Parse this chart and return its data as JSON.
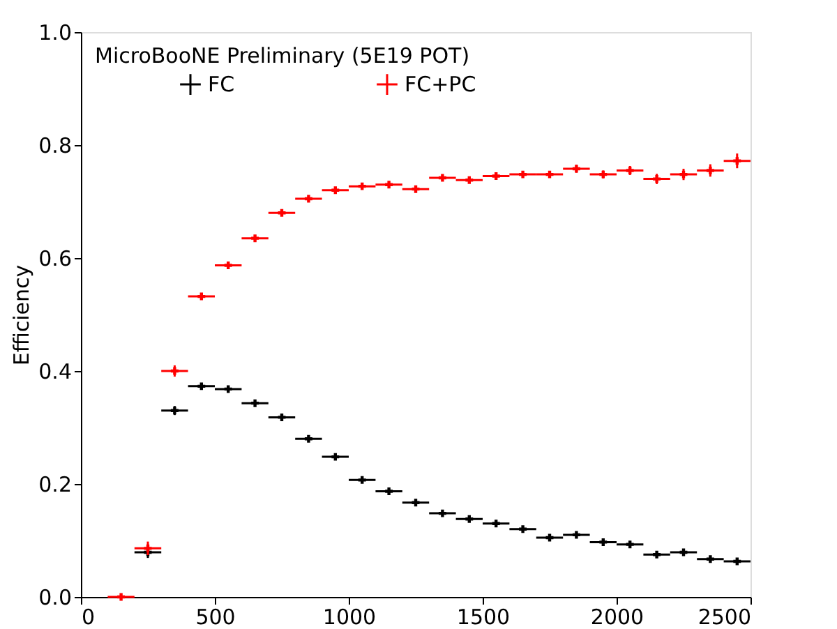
{
  "chart_data": {
    "type": "scatter",
    "marker": "cross",
    "ylabel": "Efficiency",
    "legend_title": "MicroBooNE Preliminary (5E19 POT)",
    "legend": "top left",
    "grid": false,
    "x": [
      150,
      250,
      350,
      450,
      550,
      650,
      750,
      850,
      950,
      1050,
      1150,
      1250,
      1350,
      1450,
      1550,
      1650,
      1750,
      1850,
      1950,
      2050,
      2150,
      2250,
      2350,
      2450
    ],
    "xlim": [
      0,
      2500
    ],
    "xticks": [
      0,
      500,
      {
        "value": 1000,
        "label": "1000"
      },
      {
        "value": 1500,
        "label": "1500"
      },
      {
        "value": 2000,
        "label": "2000"
      },
      {
        "value": 2500,
        "label": "2500"
      }
    ],
    "ylim": [
      0,
      1.0
    ],
    "yticks": [
      {
        "value": 0,
        "label": "0.0"
      },
      0.2,
      0.4,
      0.6,
      0.8,
      {
        "value": 1.0,
        "label": "1.0"
      }
    ],
    "series": [
      {
        "name": "FC",
        "color": "#000000",
        "values": [
          null,
          0.079,
          0.33,
          0.373,
          0.368,
          0.343,
          0.318,
          0.28,
          0.248,
          0.207,
          0.187,
          0.167,
          0.148,
          0.138,
          0.13,
          0.12,
          0.105,
          0.11,
          0.097,
          0.093,
          0.075,
          0.079,
          0.067,
          0.063
        ],
        "errors": [
          null,
          0.01,
          0.008,
          0.005,
          0.004,
          0.003,
          0.003,
          0.003,
          0.003,
          0.003,
          0.003,
          0.003,
          0.003,
          0.003,
          0.003,
          0.003,
          0.003,
          0.005,
          0.004,
          0.004,
          0.005,
          0.005,
          0.006,
          0.006
        ],
        "xerrors": [
          null,
          50,
          50,
          50,
          50,
          50,
          50,
          50,
          50,
          50,
          50,
          50,
          50,
          50,
          50,
          50,
          50,
          50,
          50,
          50,
          50,
          50,
          50,
          50
        ]
      },
      {
        "name": "FC+PC",
        "color": "#ff0000",
        "values": [
          0.0,
          0.086,
          0.4,
          0.532,
          0.587,
          0.635,
          0.68,
          0.705,
          0.72,
          0.727,
          0.73,
          0.722,
          0.742,
          0.738,
          0.745,
          0.748,
          0.748,
          0.758,
          0.748,
          0.755,
          0.74,
          0.748,
          0.755,
          0.772
        ],
        "errors": [
          0.002,
          0.012,
          0.01,
          0.006,
          0.005,
          0.004,
          0.003,
          0.003,
          0.003,
          0.003,
          0.003,
          0.003,
          0.004,
          0.004,
          0.005,
          0.005,
          0.006,
          0.007,
          0.007,
          0.008,
          0.009,
          0.01,
          0.011,
          0.013
        ],
        "xerrors": [
          50,
          50,
          50,
          50,
          50,
          50,
          50,
          50,
          50,
          50,
          50,
          50,
          50,
          50,
          50,
          50,
          50,
          50,
          50,
          50,
          50,
          50,
          50,
          50
        ]
      }
    ]
  }
}
